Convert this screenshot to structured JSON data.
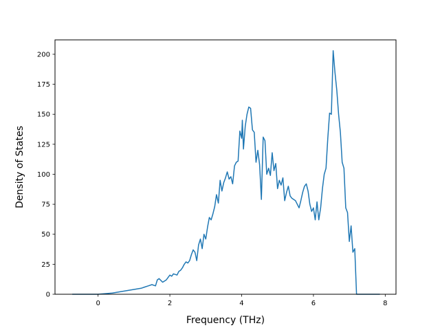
{
  "chart_data": {
    "type": "line",
    "title": "",
    "xlabel": "Frequency (THz)",
    "ylabel": "Density of States",
    "xlim": [
      -1.2,
      8.3
    ],
    "ylim": [
      0,
      212
    ],
    "xticks": [
      0,
      2,
      4,
      6,
      8
    ],
    "yticks": [
      0,
      25,
      50,
      75,
      100,
      125,
      150,
      175,
      200
    ],
    "grid": false,
    "color": "#1f77b4",
    "series": [
      {
        "x": [
          -0.72,
          0.0,
          0.2,
          0.4,
          0.6,
          0.8,
          1.0,
          1.2,
          1.3,
          1.4,
          1.5,
          1.6,
          1.65,
          1.7,
          1.8,
          1.9,
          2.0,
          2.05,
          2.1,
          2.2,
          2.25,
          2.3,
          2.35,
          2.4,
          2.45,
          2.5,
          2.55,
          2.6,
          2.65,
          2.7,
          2.75,
          2.8,
          2.85,
          2.9,
          2.95,
          3.0,
          3.05,
          3.1,
          3.15,
          3.2,
          3.25,
          3.3,
          3.35,
          3.4,
          3.45,
          3.5,
          3.55,
          3.6,
          3.65,
          3.7,
          3.75,
          3.8,
          3.85,
          3.9,
          3.95,
          4.0,
          4.02,
          4.05,
          4.1,
          4.15,
          4.2,
          4.25,
          4.3,
          4.35,
          4.4,
          4.45,
          4.5,
          4.55,
          4.6,
          4.65,
          4.7,
          4.75,
          4.8,
          4.85,
          4.9,
          4.95,
          5.0,
          5.05,
          5.1,
          5.15,
          5.2,
          5.25,
          5.3,
          5.35,
          5.4,
          5.5,
          5.6,
          5.65,
          5.7,
          5.75,
          5.8,
          5.85,
          5.9,
          5.95,
          6.0,
          6.05,
          6.1,
          6.15,
          6.2,
          6.25,
          6.3,
          6.35,
          6.4,
          6.45,
          6.5,
          6.55,
          6.6,
          6.65,
          6.7,
          6.75,
          6.8,
          6.85,
          6.9,
          6.95,
          7.0,
          7.05,
          7.1,
          7.15,
          7.2,
          7.85
        ],
        "y": [
          0,
          0,
          0.5,
          1,
          2,
          3,
          4,
          5,
          6,
          7,
          8,
          7,
          12,
          13,
          10,
          12,
          16,
          15,
          17,
          16,
          19,
          20,
          22,
          25,
          27,
          26,
          28,
          33,
          37,
          35,
          28,
          41,
          46,
          38,
          50,
          46,
          56,
          64,
          62,
          67,
          73,
          83,
          76,
          95,
          86,
          93,
          97,
          102,
          96,
          98,
          92,
          107,
          110,
          111,
          136,
          130,
          145,
          121,
          140,
          150,
          156,
          155,
          137,
          135,
          110,
          120,
          108,
          79,
          131,
          128,
          100,
          105,
          99,
          118,
          103,
          109,
          88,
          95,
          91,
          97,
          78,
          85,
          90,
          82,
          80,
          78,
          72,
          78,
          85,
          90,
          92,
          86,
          75,
          69,
          72,
          62,
          77,
          62,
          72,
          88,
          100,
          105,
          130,
          151,
          150,
          203,
          185,
          170,
          150,
          135,
          110,
          105,
          72,
          68,
          44,
          57,
          35,
          38,
          0,
          0
        ]
      }
    ]
  }
}
